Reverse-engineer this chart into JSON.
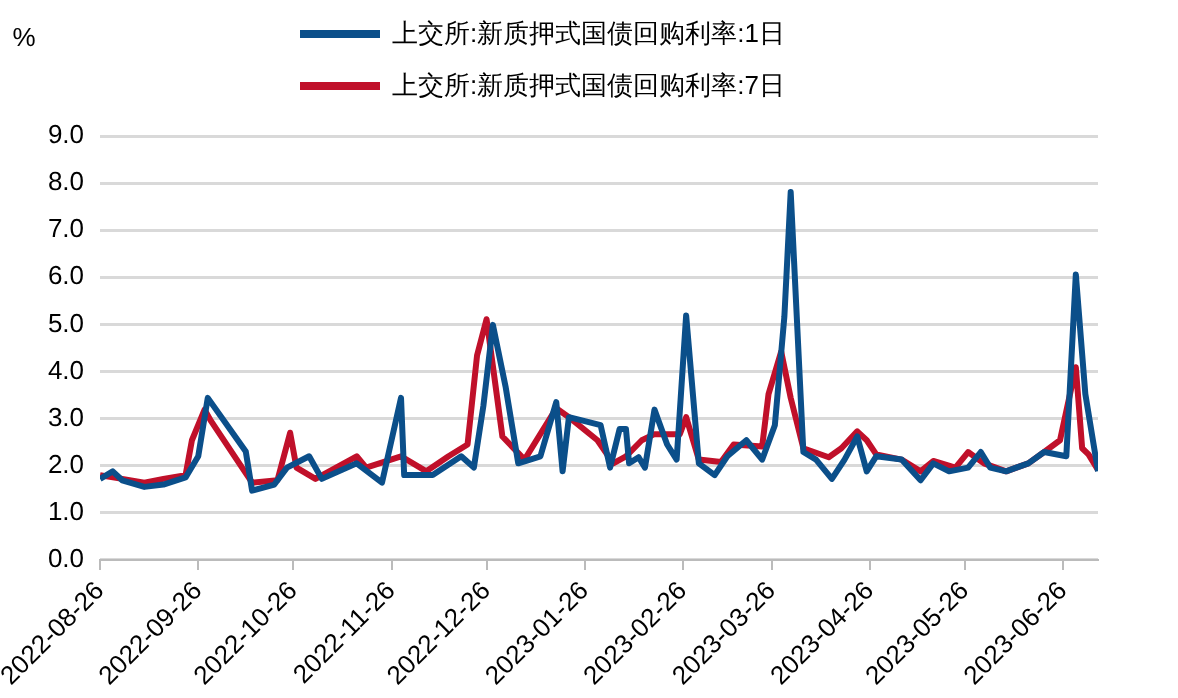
{
  "chart_data": {
    "type": "line",
    "ylabel": "%",
    "xlim": [
      "2022-08-26",
      "2023-07-07"
    ],
    "xticks": [
      "2022-08-26",
      "2022-09-26",
      "2022-10-26",
      "2022-11-26",
      "2022-12-26",
      "2023-01-26",
      "2023-02-26",
      "2023-03-26",
      "2023-04-26",
      "2023-05-26",
      "2023-06-26"
    ],
    "ylim": [
      0,
      9
    ],
    "yticks": [
      {
        "value": 0,
        "label": "0.0"
      },
      {
        "value": 1,
        "label": "1.0"
      },
      {
        "value": 2,
        "label": "2.0"
      },
      {
        "value": 3,
        "label": "3.0"
      },
      {
        "value": 4,
        "label": "4.0"
      },
      {
        "value": 5,
        "label": "5.0"
      },
      {
        "value": 6,
        "label": "6.0"
      },
      {
        "value": 7,
        "label": "7.0"
      },
      {
        "value": 8,
        "label": "8.0"
      },
      {
        "value": 9,
        "label": "9.0"
      }
    ],
    "grid": "y",
    "legend": "top",
    "marker": "none",
    "line_style": "solid",
    "series": [
      {
        "name": "上交所:新质押式国债回购利率:1日",
        "color": "#0b4f8a",
        "x": [
          "2022-08-26",
          "2022-08-30",
          "2022-09-02",
          "2022-09-09",
          "2022-09-15",
          "2022-09-22",
          "2022-09-26",
          "2022-09-29",
          "2022-10-11",
          "2022-10-13",
          "2022-10-20",
          "2022-10-24",
          "2022-10-31",
          "2022-11-04",
          "2022-11-15",
          "2022-11-23",
          "2022-11-29",
          "2022-11-30",
          "2022-12-09",
          "2022-12-18",
          "2022-12-22",
          "2022-12-25",
          "2022-12-28",
          "2023-01-01",
          "2023-01-05",
          "2023-01-12",
          "2023-01-17",
          "2023-01-19",
          "2023-01-21",
          "2023-01-31",
          "2023-02-03",
          "2023-02-06",
          "2023-02-08",
          "2023-02-09",
          "2023-02-12",
          "2023-02-14",
          "2023-02-17",
          "2023-02-21",
          "2023-02-24",
          "2023-02-27",
          "2023-03-03",
          "2023-03-08",
          "2023-03-12",
          "2023-03-18",
          "2023-03-23",
          "2023-03-27",
          "2023-03-30",
          "2023-04-01",
          "2023-04-05",
          "2023-04-09",
          "2023-04-14",
          "2023-04-18",
          "2023-04-22",
          "2023-04-25",
          "2023-04-28",
          "2023-05-06",
          "2023-05-12",
          "2023-05-16",
          "2023-05-21",
          "2023-05-27",
          "2023-05-31",
          "2023-06-03",
          "2023-06-08",
          "2023-06-15",
          "2023-06-20",
          "2023-06-27",
          "2023-06-30",
          "2023-07-03",
          "2023-07-07"
        ],
        "values": [
          1.72,
          1.88,
          1.69,
          1.55,
          1.6,
          1.75,
          2.2,
          3.44,
          2.3,
          1.47,
          1.6,
          1.96,
          2.2,
          1.72,
          2.05,
          1.64,
          3.44,
          1.8,
          1.8,
          2.2,
          1.96,
          3.27,
          4.99,
          3.68,
          2.05,
          2.2,
          3.35,
          1.88,
          3.03,
          2.86,
          1.96,
          2.78,
          2.78,
          2.05,
          2.18,
          1.96,
          3.19,
          2.45,
          2.13,
          5.19,
          2.05,
          1.8,
          2.2,
          2.54,
          2.13,
          2.86,
          5.16,
          7.81,
          2.29,
          2.13,
          1.72,
          2.13,
          2.62,
          1.88,
          2.2,
          2.13,
          1.69,
          2.05,
          1.88,
          1.96,
          2.29,
          1.96,
          1.88,
          2.05,
          2.29,
          2.2,
          6.06,
          3.52,
          1.88
        ]
      },
      {
        "name": "上交所:新质押式国债回购利率:7日",
        "color": "#c0102a",
        "x": [
          "2022-08-26",
          "2022-09-02",
          "2022-09-09",
          "2022-09-15",
          "2022-09-22",
          "2022-09-24",
          "2022-09-28",
          "2022-09-30",
          "2022-10-13",
          "2022-10-21",
          "2022-10-25",
          "2022-10-27",
          "2022-11-02",
          "2022-11-15",
          "2022-11-18",
          "2022-11-29",
          "2022-12-07",
          "2022-12-14",
          "2022-12-20",
          "2022-12-23",
          "2022-12-26",
          "2022-12-31",
          "2023-01-07",
          "2023-01-17",
          "2023-01-21",
          "2023-01-30",
          "2023-02-04",
          "2023-02-08",
          "2023-02-13",
          "2023-02-17",
          "2023-02-25",
          "2023-02-27",
          "2023-03-03",
          "2023-03-10",
          "2023-03-14",
          "2023-03-23",
          "2023-03-25",
          "2023-03-29",
          "2023-04-01",
          "2023-04-05",
          "2023-04-13",
          "2023-04-17",
          "2023-04-22",
          "2023-04-25",
          "2023-04-28",
          "2023-05-06",
          "2023-05-12",
          "2023-05-16",
          "2023-05-23",
          "2023-05-27",
          "2023-06-01",
          "2023-06-08",
          "2023-06-15",
          "2023-06-20",
          "2023-06-25",
          "2023-06-30",
          "2023-07-02",
          "2023-07-04",
          "2023-07-07"
        ],
        "values": [
          1.8,
          1.72,
          1.64,
          1.72,
          1.8,
          2.54,
          3.19,
          2.95,
          1.64,
          1.69,
          2.7,
          1.96,
          1.72,
          2.2,
          1.96,
          2.2,
          1.88,
          2.2,
          2.45,
          4.34,
          5.11,
          2.62,
          2.13,
          3.22,
          3.03,
          2.54,
          2.05,
          2.2,
          2.54,
          2.67,
          2.67,
          3.03,
          2.13,
          2.08,
          2.45,
          2.41,
          3.52,
          4.42,
          3.44,
          2.37,
          2.18,
          2.37,
          2.73,
          2.54,
          2.24,
          2.13,
          1.88,
          2.1,
          1.96,
          2.29,
          2.05,
          1.88,
          2.05,
          2.29,
          2.54,
          4.09,
          2.37,
          2.24,
          1.91
        ]
      }
    ]
  }
}
